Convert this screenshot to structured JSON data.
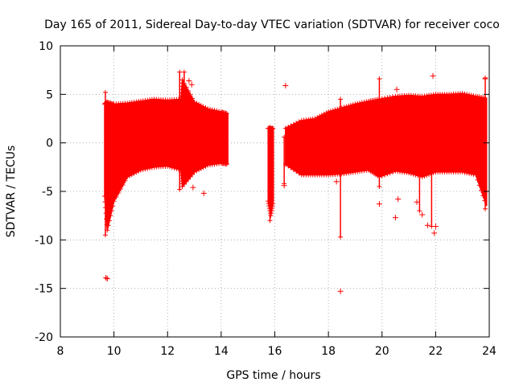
{
  "chart_data": {
    "type": "scatter",
    "title": "Day 165 of 2011, Sidereal Day-to-day VTEC variation (SDTVAR) for receiver coco",
    "xlabel": "GPS time / hours",
    "ylabel": "SDTVAR / TECUs",
    "xlim": [
      8,
      24
    ],
    "ylim": [
      -20,
      10
    ],
    "xticks": [
      8,
      10,
      12,
      14,
      16,
      18,
      20,
      22,
      24
    ],
    "yticks": [
      -20,
      -15,
      -10,
      -5,
      0,
      5,
      10
    ],
    "grid": true,
    "marker": "+",
    "color": "#ff0000",
    "bands": [
      {
        "x": [
          9.65,
          9.75,
          10.0,
          10.5,
          11.0,
          11.5,
          12.0,
          12.5,
          12.55,
          13.0,
          13.5,
          14.0,
          14.25
        ],
        "upper": [
          4.0,
          4.2,
          4.0,
          4.1,
          4.3,
          4.5,
          4.4,
          4.5,
          6.5,
          4.2,
          3.5,
          3.2,
          3.0
        ],
        "lower": [
          -5.5,
          -9.0,
          -6.0,
          -3.5,
          -2.8,
          -2.5,
          -2.4,
          -2.8,
          -4.5,
          -3.0,
          -2.3,
          -2.1,
          -2.2
        ]
      },
      {
        "x": [
          15.75,
          15.85,
          15.95
        ],
        "upper": [
          1.5,
          1.5,
          1.5
        ],
        "lower": [
          -6.0,
          -7.5,
          -6.0
        ]
      },
      {
        "x": [
          16.4,
          17.0,
          17.5,
          18.0,
          18.5,
          19.0,
          19.5,
          19.9,
          20.5,
          21.0,
          21.5,
          22.0,
          22.5,
          23.0,
          23.5,
          23.9
        ],
        "upper": [
          1.5,
          2.3,
          2.5,
          3.2,
          3.6,
          4.0,
          4.3,
          4.5,
          4.8,
          4.9,
          4.8,
          5.0,
          5.0,
          5.1,
          4.8,
          4.6
        ],
        "lower": [
          -2.2,
          -3.3,
          -3.3,
          -3.3,
          -3.2,
          -3.0,
          -2.8,
          -3.5,
          -2.9,
          -3.1,
          -3.5,
          -3.0,
          -3.0,
          -3.0,
          -3.3,
          -6.5
        ]
      }
    ],
    "spikes": [
      {
        "x": 9.68,
        "y_low": -9.5,
        "y_high": 5.2
      },
      {
        "x": 12.45,
        "y_low": -4.8,
        "y_high": 7.3
      },
      {
        "x": 12.62,
        "y_low": -4.0,
        "y_high": 7.3
      },
      {
        "x": 15.82,
        "y_low": -8.0,
        "y_high": 1.6
      },
      {
        "x": 16.35,
        "y_low": -4.2,
        "y_high": 0.6
      },
      {
        "x": 18.45,
        "y_low": -9.7,
        "y_high": 4.5
      },
      {
        "x": 19.9,
        "y_low": -4.5,
        "y_high": 6.6
      },
      {
        "x": 21.4,
        "y_low": -7.0,
        "y_high": 3.0
      },
      {
        "x": 21.85,
        "y_low": -8.6,
        "y_high": 3.0
      },
      {
        "x": 23.85,
        "y_low": -6.8,
        "y_high": 6.7
      }
    ],
    "outliers": [
      {
        "x": 9.7,
        "y": -13.9
      },
      {
        "x": 9.75,
        "y": -14.0
      },
      {
        "x": 16.4,
        "y": 5.9
      },
      {
        "x": 16.35,
        "y": -4.4
      },
      {
        "x": 12.95,
        "y": -4.6
      },
      {
        "x": 13.35,
        "y": -5.2
      },
      {
        "x": 13.3,
        "y": -1.6
      },
      {
        "x": 12.8,
        "y": 6.4
      },
      {
        "x": 12.9,
        "y": 6.0
      },
      {
        "x": 18.45,
        "y": -15.3
      },
      {
        "x": 18.3,
        "y": -4.0
      },
      {
        "x": 19.9,
        "y": -6.3
      },
      {
        "x": 20.5,
        "y": -7.7
      },
      {
        "x": 20.55,
        "y": 5.5
      },
      {
        "x": 20.6,
        "y": -5.8
      },
      {
        "x": 21.3,
        "y": -6.1
      },
      {
        "x": 21.9,
        "y": 6.9
      },
      {
        "x": 21.7,
        "y": -8.5
      },
      {
        "x": 21.95,
        "y": -9.3
      },
      {
        "x": 22.0,
        "y": -8.6
      },
      {
        "x": 21.5,
        "y": -7.4
      },
      {
        "x": 23.85,
        "y": 6.6
      }
    ]
  }
}
